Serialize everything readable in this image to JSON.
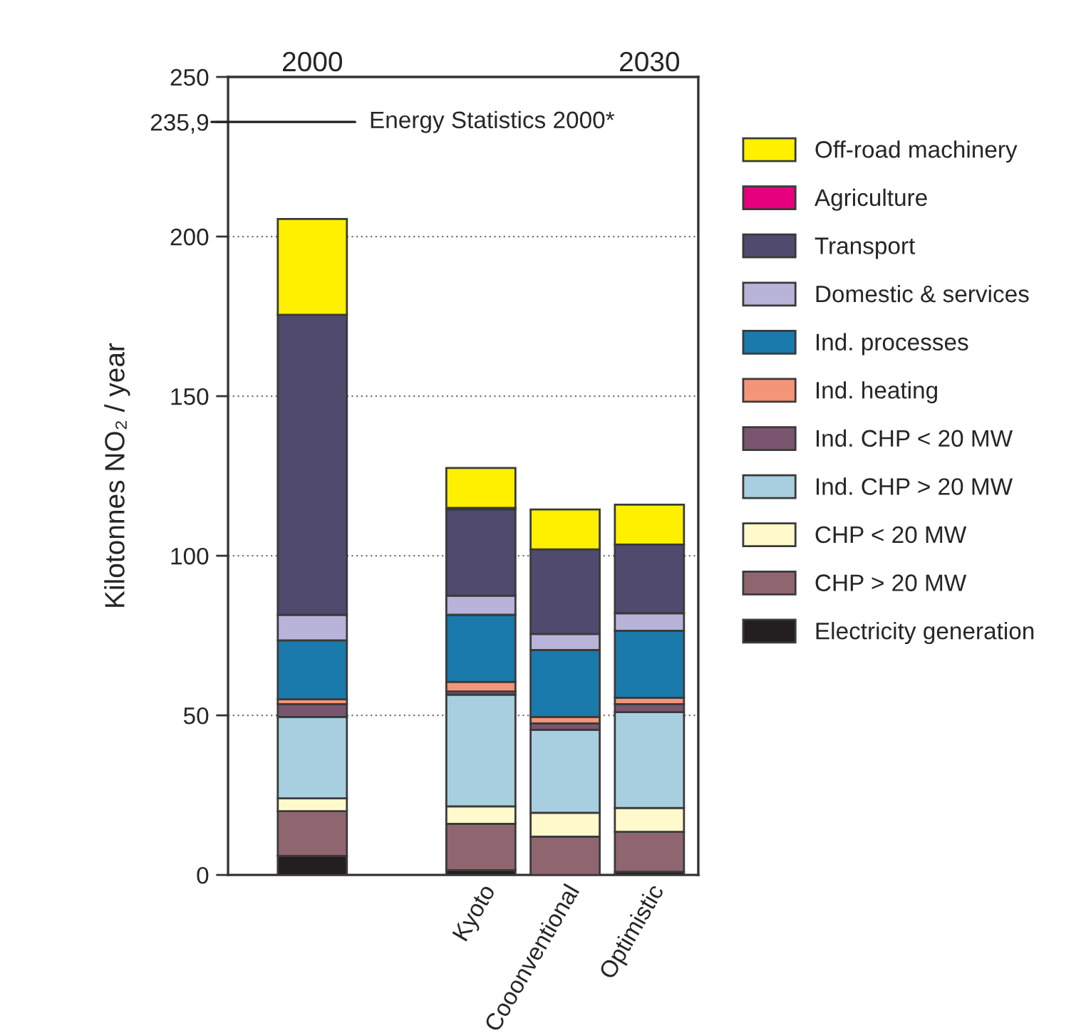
{
  "chart_data": {
    "type": "bar",
    "stacked": true,
    "ylabel": "Kilotonnes NO₂ / year",
    "categories": [
      null,
      null,
      "Kyoto",
      "Cooonventional",
      "Optimistic"
    ],
    "ylim": [
      0,
      250
    ],
    "yticks": [
      0,
      50,
      100,
      150,
      200,
      {
        "value": 235.9,
        "label": "235,9"
      },
      250
    ],
    "grid": "y",
    "legend": "right",
    "annotations": [
      "2000",
      "2030"
    ],
    "ref_lines": [
      {
        "axis": "y",
        "value": 235.9,
        "label": "Energy Statistics 2000*",
        "color": "#231f20"
      }
    ],
    "series": [
      {
        "name": "Electricity generation",
        "color": "#231f20",
        "values": [
          6,
          null,
          1.5,
          null,
          1
        ]
      },
      {
        "name": "CHP > 20 MW",
        "color": "#8f6670",
        "values": [
          14,
          null,
          14.5,
          12,
          12.5
        ]
      },
      {
        "name": "CHP < 20 MW",
        "color": "#fff9cc",
        "values": [
          4,
          null,
          5.5,
          7.5,
          7.5
        ]
      },
      {
        "name": "Ind. CHP > 20 MW",
        "color": "#a8cfe0",
        "values": [
          25.5,
          null,
          35,
          26,
          30
        ]
      },
      {
        "name": "Ind. CHP < 20 MW",
        "color": "#7a5570",
        "values": [
          4,
          null,
          1,
          2,
          2.5
        ]
      },
      {
        "name": "Ind. heating",
        "color": "#f4957a",
        "values": [
          1.5,
          null,
          3,
          2,
          2
        ]
      },
      {
        "name": "Ind. processes",
        "color": "#1a7aab",
        "values": [
          18.5,
          null,
          21,
          21,
          21
        ]
      },
      {
        "name": "Domestic & services",
        "color": "#b8b3d9",
        "values": [
          8,
          null,
          6,
          5,
          5.5
        ]
      },
      {
        "name": "Transport",
        "color": "#4f4a6e",
        "values": [
          94,
          null,
          27,
          26.5,
          21.5
        ]
      },
      {
        "name": "Agriculture",
        "color": "#e6007e",
        "values": [
          null,
          null,
          0.5,
          null,
          null
        ]
      },
      {
        "name": "Off-road machinery",
        "color": "#fff000",
        "values": [
          30,
          null,
          12.5,
          12.5,
          12.5
        ]
      }
    ]
  }
}
